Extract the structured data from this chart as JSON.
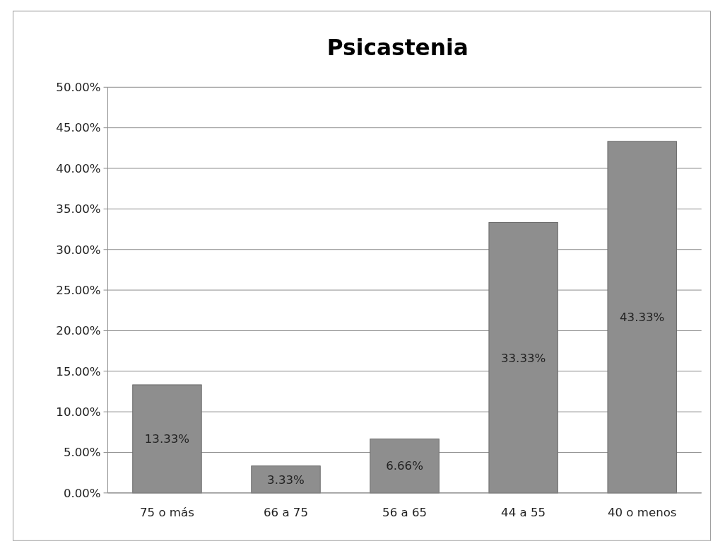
{
  "chart_data": {
    "type": "bar",
    "title": "Psicastenia",
    "categories": [
      "75 o más",
      "66 a 75",
      "56 a 65",
      "44 a 55",
      "40 o menos"
    ],
    "values": [
      13.33,
      3.33,
      6.66,
      33.33,
      43.33
    ],
    "value_labels": [
      "13.33%",
      "3.33%",
      "6.66%",
      "33.33%",
      "43.33%"
    ],
    "color": "#8e8e8e",
    "ylim": [
      0,
      50
    ],
    "yticks": [
      {
        "value": 0,
        "label": "0.00%"
      },
      {
        "value": 5,
        "label": "5.00%"
      },
      {
        "value": 10,
        "label": "10.00%"
      },
      {
        "value": 15,
        "label": "15.00%"
      },
      {
        "value": 20,
        "label": "20.00%"
      },
      {
        "value": 25,
        "label": "25.00%"
      },
      {
        "value": 30,
        "label": "30.00%"
      },
      {
        "value": 35,
        "label": "35.00%"
      },
      {
        "value": 40,
        "label": "40.00%"
      },
      {
        "value": 45,
        "label": "45.00%"
      },
      {
        "value": 50,
        "label": "50.00%"
      }
    ],
    "grid": "y"
  }
}
